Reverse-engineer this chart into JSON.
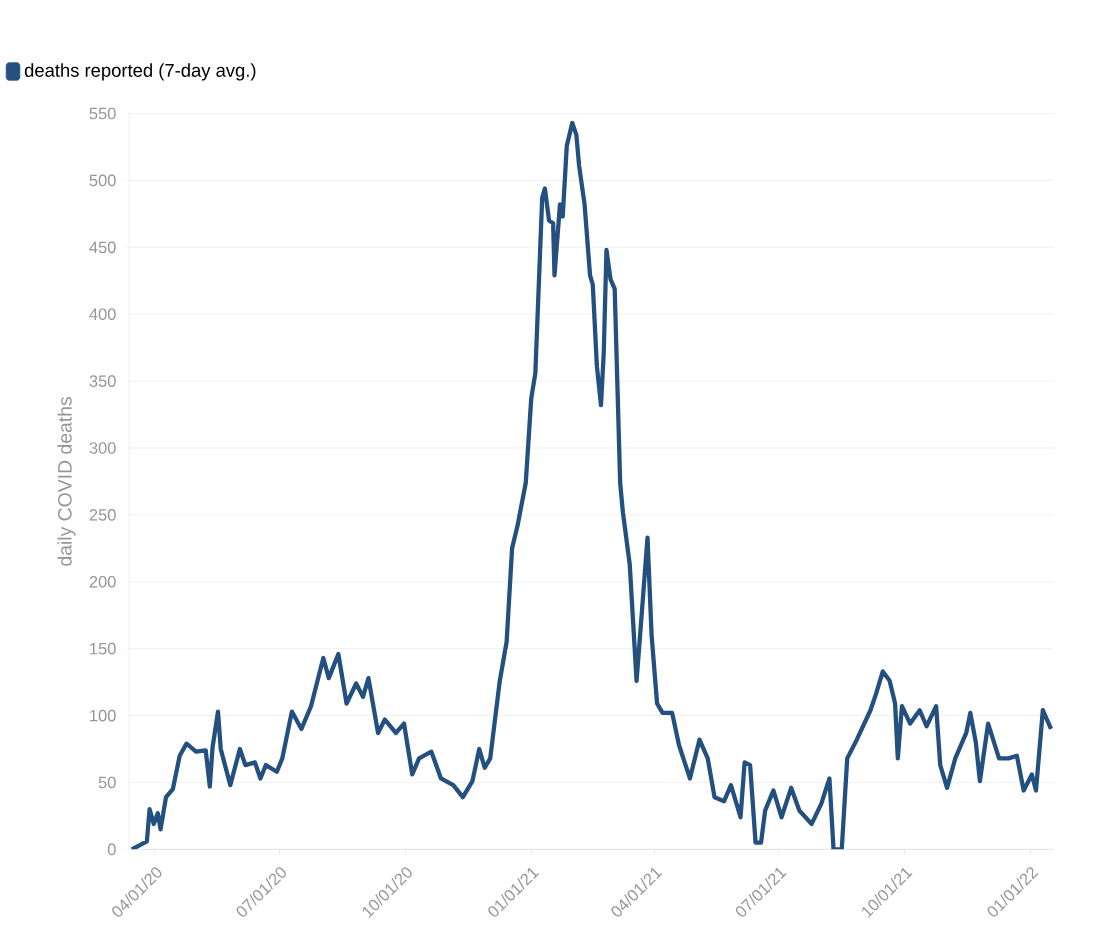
{
  "chart_data": {
    "type": "line",
    "ylabel": "daily COVID deaths",
    "x": [
      "2020-03-15",
      "2020-03-26",
      "2020-03-28",
      "2020-03-31",
      "2020-04-03",
      "2020-04-05",
      "2020-04-09",
      "2020-04-14",
      "2020-04-19",
      "2020-04-24",
      "2020-05-01",
      "2020-05-08",
      "2020-05-11",
      "2020-05-13",
      "2020-05-17",
      "2020-05-19",
      "2020-05-26",
      "2020-06-02",
      "2020-06-06",
      "2020-06-13",
      "2020-06-17",
      "2020-06-21",
      "2020-06-29",
      "2020-07-03",
      "2020-07-10",
      "2020-07-17",
      "2020-07-24",
      "2020-08-02",
      "2020-08-06",
      "2020-08-13",
      "2020-08-19",
      "2020-08-26",
      "2020-08-31",
      "2020-09-04",
      "2020-09-11",
      "2020-09-16",
      "2020-09-24",
      "2020-09-30",
      "2020-10-06",
      "2020-10-11",
      "2020-10-20",
      "2020-10-27",
      "2020-11-05",
      "2020-11-12",
      "2020-11-19",
      "2020-11-24",
      "2020-11-28",
      "2020-12-02",
      "2020-12-09",
      "2020-12-14",
      "2020-12-18",
      "2020-12-22",
      "2020-12-28",
      "2021-01-01",
      "2021-01-04",
      "2021-01-09",
      "2021-01-11",
      "2021-01-14",
      "2021-01-17",
      "2021-01-18",
      "2021-01-22",
      "2021-01-24",
      "2021-01-27",
      "2021-01-31",
      "2021-02-03",
      "2021-02-05",
      "2021-02-09",
      "2021-02-13",
      "2021-02-15",
      "2021-02-18",
      "2021-02-21",
      "2021-02-23",
      "2021-02-25",
      "2021-02-28",
      "2021-03-03",
      "2021-03-07",
      "2021-03-09",
      "2021-03-14",
      "2021-03-19",
      "2021-03-23",
      "2021-03-27",
      "2021-03-30",
      "2021-04-03",
      "2021-04-07",
      "2021-04-14",
      "2021-04-19",
      "2021-04-27",
      "2021-05-04",
      "2021-05-10",
      "2021-05-15",
      "2021-05-22",
      "2021-05-27",
      "2021-06-03",
      "2021-06-06",
      "2021-06-10",
      "2021-06-14",
      "2021-06-18",
      "2021-06-21",
      "2021-06-27",
      "2021-07-03",
      "2021-07-10",
      "2021-07-16",
      "2021-07-25",
      "2021-08-01",
      "2021-08-07",
      "2021-08-10",
      "2021-08-16",
      "2021-08-20",
      "2021-08-27",
      "2021-09-06",
      "2021-09-10",
      "2021-09-15",
      "2021-09-20",
      "2021-09-24",
      "2021-09-26",
      "2021-09-29",
      "2021-10-05",
      "2021-10-12",
      "2021-10-17",
      "2021-10-24",
      "2021-10-27",
      "2021-11-01",
      "2021-11-07",
      "2021-11-15",
      "2021-11-18",
      "2021-11-22",
      "2021-11-25",
      "2021-12-01",
      "2021-12-09",
      "2021-12-16",
      "2021-12-22",
      "2021-12-27",
      "2022-01-02",
      "2022-01-05",
      "2022-01-10",
      "2022-01-16"
    ],
    "series": [
      {
        "name": "deaths reported (7-day avg.)",
        "color": "#23507f",
        "values": [
          0,
          6,
          30,
          19,
          27,
          15,
          39,
          45,
          70,
          79,
          73,
          74,
          47,
          76,
          103,
          75,
          48,
          75,
          63,
          65,
          53,
          63,
          58,
          68,
          103,
          90,
          107,
          143,
          128,
          146,
          109,
          124,
          114,
          128,
          87,
          97,
          87,
          94,
          56,
          68,
          73,
          53,
          48,
          39,
          51,
          75,
          61,
          68,
          126,
          155,
          225,
          242,
          274,
          337,
          356,
          487,
          494,
          470,
          468,
          429,
          482,
          473,
          526,
          543,
          534,
          511,
          482,
          429,
          422,
          361,
          332,
          371,
          448,
          426,
          419,
          274,
          252,
          213,
          126,
          179,
          233,
          160,
          109,
          102,
          102,
          78,
          53,
          82,
          68,
          39,
          36,
          48,
          24,
          65,
          63,
          5,
          5,
          29,
          44,
          24,
          46,
          29,
          19,
          34,
          53,
          0,
          0,
          68,
          82,
          104,
          116,
          133,
          126,
          109,
          68,
          107,
          94,
          104,
          92,
          107,
          63,
          46,
          68,
          87,
          102,
          80,
          51,
          94,
          68,
          68,
          70,
          44,
          56,
          44,
          104,
          90
        ]
      }
    ],
    "xlim": [
      "2020-03-13",
      "2022-01-18"
    ],
    "xticks": [
      {
        "value": "2020-04-01",
        "label": "04/01/20"
      },
      {
        "value": "2020-07-01",
        "label": "07/01/20"
      },
      {
        "value": "2020-10-01",
        "label": "10/01/20"
      },
      {
        "value": "2021-01-01",
        "label": "01/01/21"
      },
      {
        "value": "2021-04-01",
        "label": "04/01/21"
      },
      {
        "value": "2021-07-01",
        "label": "07/01/21"
      },
      {
        "value": "2021-10-01",
        "label": "10/01/21"
      },
      {
        "value": "2022-01-01",
        "label": "01/01/22"
      }
    ],
    "ylim": [
      0,
      550
    ],
    "yticks": [
      0,
      50,
      100,
      150,
      200,
      250,
      300,
      350,
      400,
      450,
      500,
      550
    ],
    "grid": "y",
    "legend": "top left"
  }
}
